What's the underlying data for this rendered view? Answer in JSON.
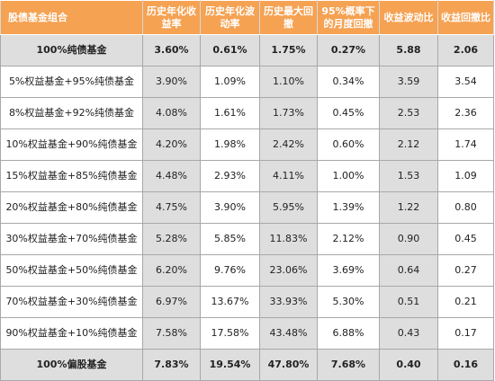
{
  "table": {
    "headers": [
      "股债基金组合",
      "历史年化收益率",
      "历史年化波动率",
      "历史最大回撤",
      "95%概率下的月度回撤",
      "收益波动比",
      "收益回撤比"
    ],
    "rows": [
      [
        "100%纯债基金",
        "3.60%",
        "0.61%",
        "1.75%",
        "0.27%",
        "5.88",
        "2.06"
      ],
      [
        "5%权益基金+95%纯债基金",
        "3.90%",
        "1.09%",
        "1.10%",
        "0.34%",
        "3.59",
        "3.54"
      ],
      [
        "8%权益基金+92%纯债基金",
        "4.08%",
        "1.61%",
        "1.73%",
        "0.45%",
        "2.53",
        "2.36"
      ],
      [
        "10%权益基金+90%纯债基金",
        "4.20%",
        "1.98%",
        "2.42%",
        "0.60%",
        "2.12",
        "1.74"
      ],
      [
        "15%权益基金+85%纯债基金",
        "4.48%",
        "2.93%",
        "4.11%",
        "1.00%",
        "1.53",
        "1.09"
      ],
      [
        "20%权益基金+80%纯债基金",
        "4.75%",
        "3.90%",
        "5.95%",
        "1.39%",
        "1.22",
        "0.80"
      ],
      [
        "30%权益基金+70%纯债基金",
        "5.28%",
        "5.85%",
        "11.83%",
        "2.12%",
        "0.90",
        "0.45"
      ],
      [
        "50%权益基金+50%纯债基金",
        "6.20%",
        "9.76%",
        "23.06%",
        "3.69%",
        "0.64",
        "0.27"
      ],
      [
        "70%权益基金+30%纯债基金",
        "6.97%",
        "13.67%",
        "33.93%",
        "5.30%",
        "0.51",
        "0.21"
      ],
      [
        "90%权益基金+10%纯债基金",
        "7.58%",
        "17.58%",
        "43.48%",
        "6.88%",
        "0.43",
        "0.17"
      ],
      [
        "100%偏股基金",
        "7.83%",
        "19.54%",
        "47.80%",
        "7.68%",
        "0.40",
        "0.16"
      ]
    ]
  },
  "colors": {
    "header_bg": "#f5a253",
    "header_text": "#ffffff",
    "highlight_row_bg": "#dedede",
    "border": "#a8a8a8"
  }
}
